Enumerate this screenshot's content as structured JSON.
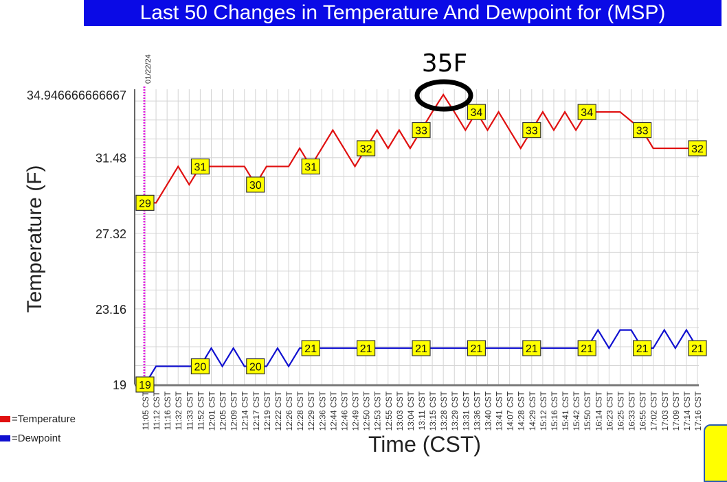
{
  "chart_data": {
    "type": "line",
    "title": "Last 50 Changes in Temperature And Dewpoint for (MSP)",
    "xlabel": "Time (CST)",
    "ylabel": "Temperature (F)",
    "ylim": [
      19,
      34.946666666667
    ],
    "yticks": [
      "34.946666666667",
      "31.48",
      "27.32",
      "23.16",
      "19"
    ],
    "ytick_values": [
      34.946666666667,
      31.48,
      27.32,
      23.16,
      19
    ],
    "grid": true,
    "date_marker": "01/22/24",
    "annotation": "35F",
    "categories": [
      "11:05 CST",
      "11:12 CST",
      "11:16 CST",
      "11:32 CST",
      "11:33 CST",
      "11:52 CST",
      "12:01 CST",
      "12:05 CST",
      "12:09 CST",
      "12:14 CST",
      "12:17 CST",
      "12:19 CST",
      "12:22 CST",
      "12:26 CST",
      "12:28 CST",
      "12:29 CST",
      "12:36 CST",
      "12:44 CST",
      "12:46 CST",
      "12:49 CST",
      "12:50 CST",
      "12:53 CST",
      "12:55 CST",
      "13:03 CST",
      "13:04 CST",
      "13:11 CST",
      "13:15 CST",
      "13:28 CST",
      "13:29 CST",
      "13:31 CST",
      "13:36 CST",
      "13:40 CST",
      "13:41 CST",
      "14:07 CST",
      "14:28 CST",
      "14:29 CST",
      "15:12 CST",
      "15:16 CST",
      "15:41 CST",
      "15:42 CST",
      "15:50 CST",
      "16:14 CST",
      "16:23 CST",
      "16:25 CST",
      "16:33 CST",
      "16:55 CST",
      "17:02 CST",
      "17:03 CST",
      "17:09 CST",
      "17:14 CST",
      "17:16 CST"
    ],
    "series": [
      {
        "name": "Temperature",
        "color": "#e01010",
        "values": [
          29,
          29,
          30,
          31,
          30,
          31,
          31,
          31,
          31,
          31,
          30,
          31,
          31,
          31,
          32,
          31,
          32,
          33,
          32,
          31,
          32,
          33,
          32,
          33,
          32,
          33,
          34,
          34.95,
          34,
          33,
          34,
          33,
          34,
          33,
          32,
          33,
          34,
          33,
          34,
          33,
          34,
          34,
          34,
          34,
          33.5,
          33,
          32,
          32,
          32,
          32,
          32
        ],
        "data_labels": [
          {
            "index": 0,
            "text": "29"
          },
          {
            "index": 5,
            "text": "31"
          },
          {
            "index": 10,
            "text": "30"
          },
          {
            "index": 15,
            "text": "31"
          },
          {
            "index": 20,
            "text": "32"
          },
          {
            "index": 25,
            "text": "33"
          },
          {
            "index": 30,
            "text": "34"
          },
          {
            "index": 35,
            "text": "33"
          },
          {
            "index": 40,
            "text": "34"
          },
          {
            "index": 45,
            "text": "33"
          },
          {
            "index": 50,
            "text": "32"
          }
        ]
      },
      {
        "name": "Dewpoint",
        "color": "#1010d0",
        "values": [
          19,
          20,
          20,
          20,
          20,
          20,
          21,
          20,
          21,
          20,
          20,
          20,
          21,
          20,
          21,
          21,
          21,
          21,
          21,
          21,
          21,
          21,
          21,
          21,
          21,
          21,
          21,
          21,
          21,
          21,
          21,
          21,
          21,
          21,
          21,
          21,
          21,
          21,
          21,
          21,
          21,
          22,
          21,
          22,
          22,
          21,
          21,
          22,
          21,
          22,
          21
        ],
        "data_labels": [
          {
            "index": 0,
            "text": "19"
          },
          {
            "index": 5,
            "text": "20"
          },
          {
            "index": 10,
            "text": "20"
          },
          {
            "index": 15,
            "text": "21"
          },
          {
            "index": 20,
            "text": "21"
          },
          {
            "index": 25,
            "text": "21"
          },
          {
            "index": 30,
            "text": "21"
          },
          {
            "index": 35,
            "text": "21"
          },
          {
            "index": 40,
            "text": "21"
          },
          {
            "index": 45,
            "text": "21"
          },
          {
            "index": 50,
            "text": "21"
          }
        ]
      }
    ],
    "legend": {
      "placement": "bottom-left",
      "entries": [
        "=Temperature",
        "=Dewpoint"
      ]
    }
  },
  "colors": {
    "title_bg": "#0a0ae6",
    "label_bg": "#ffff00",
    "date_marker": "#e020e0",
    "annotation": "#000000"
  }
}
